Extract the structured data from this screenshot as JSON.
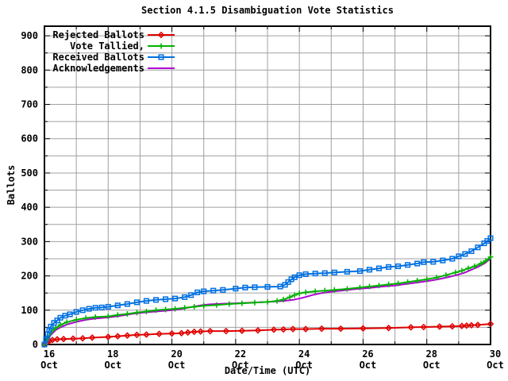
{
  "chart_data": {
    "type": "line",
    "title": "Section 4.1.5 Disambiguation Vote Statistics",
    "xlabel": "Date/Time (UTC)",
    "ylabel": "Ballots",
    "x_axis": {
      "month_label": "Oct",
      "min_day": 16,
      "max_day": 30,
      "major_tick_days": [
        16,
        18,
        20,
        22,
        24,
        26,
        28,
        30
      ],
      "minor_tick_interval_days": 1
    },
    "y_axis": {
      "min": 0,
      "max": 900,
      "major_tick_interval": 100,
      "minor_tick_interval": 50,
      "tick_labels": [
        "0",
        "100",
        "200",
        "300",
        "400",
        "500",
        "600",
        "700",
        "800",
        "900"
      ]
    },
    "grid": {
      "vertical_interval_days": 1,
      "horizontal_interval": 50,
      "color": "#a0a0a0"
    },
    "border_color": "#000000",
    "legend": {
      "position": "top-left"
    },
    "series": [
      {
        "name": "Rejected Ballots",
        "color": "#e10000",
        "marker": "diamond",
        "points": [
          [
            16.0,
            0
          ],
          [
            16.08,
            6
          ],
          [
            16.15,
            10
          ],
          [
            16.25,
            13
          ],
          [
            16.4,
            15
          ],
          [
            16.6,
            16
          ],
          [
            16.9,
            17
          ],
          [
            17.2,
            18
          ],
          [
            17.5,
            20
          ],
          [
            18.0,
            22
          ],
          [
            18.3,
            24
          ],
          [
            18.6,
            26
          ],
          [
            18.9,
            28
          ],
          [
            19.2,
            29
          ],
          [
            19.6,
            31
          ],
          [
            20.0,
            32
          ],
          [
            20.3,
            33
          ],
          [
            20.5,
            35
          ],
          [
            20.7,
            37
          ],
          [
            20.9,
            38
          ],
          [
            21.2,
            39
          ],
          [
            21.7,
            39
          ],
          [
            22.2,
            40
          ],
          [
            22.7,
            41
          ],
          [
            23.2,
            43
          ],
          [
            23.5,
            44
          ],
          [
            23.8,
            45
          ],
          [
            24.2,
            45
          ],
          [
            24.7,
            46
          ],
          [
            25.3,
            46
          ],
          [
            26.0,
            47
          ],
          [
            26.8,
            48
          ],
          [
            27.5,
            50
          ],
          [
            27.9,
            51
          ],
          [
            28.4,
            52
          ],
          [
            28.8,
            53
          ],
          [
            29.1,
            54
          ],
          [
            29.25,
            55
          ],
          [
            29.4,
            56
          ],
          [
            29.6,
            57
          ],
          [
            30.0,
            60
          ]
        ]
      },
      {
        "name": "Vote Tallied,",
        "color": "#00b200",
        "marker": "plus",
        "points": [
          [
            16.0,
            0
          ],
          [
            16.1,
            18
          ],
          [
            16.2,
            35
          ],
          [
            16.35,
            48
          ],
          [
            16.5,
            57
          ],
          [
            16.7,
            65
          ],
          [
            17.0,
            72
          ],
          [
            17.3,
            77
          ],
          [
            17.6,
            80
          ],
          [
            18.0,
            82
          ],
          [
            18.3,
            86
          ],
          [
            18.6,
            89
          ],
          [
            18.9,
            93
          ],
          [
            19.2,
            96
          ],
          [
            19.5,
            100
          ],
          [
            19.8,
            102
          ],
          [
            20.1,
            104
          ],
          [
            20.4,
            107
          ],
          [
            20.7,
            110
          ],
          [
            21.0,
            113
          ],
          [
            21.4,
            115
          ],
          [
            21.8,
            118
          ],
          [
            22.2,
            120
          ],
          [
            22.6,
            122
          ],
          [
            23.0,
            124
          ],
          [
            23.3,
            127
          ],
          [
            23.5,
            131
          ],
          [
            23.7,
            138
          ],
          [
            23.85,
            144
          ],
          [
            24.0,
            149
          ],
          [
            24.2,
            152
          ],
          [
            24.5,
            155
          ],
          [
            24.8,
            157
          ],
          [
            25.1,
            159
          ],
          [
            25.5,
            162
          ],
          [
            25.9,
            166
          ],
          [
            26.2,
            169
          ],
          [
            26.5,
            172
          ],
          [
            26.8,
            175
          ],
          [
            27.1,
            178
          ],
          [
            27.4,
            182
          ],
          [
            27.7,
            186
          ],
          [
            28.0,
            190
          ],
          [
            28.3,
            195
          ],
          [
            28.6,
            202
          ],
          [
            28.9,
            210
          ],
          [
            29.1,
            215
          ],
          [
            29.3,
            222
          ],
          [
            29.5,
            228
          ],
          [
            29.7,
            236
          ],
          [
            29.85,
            244
          ],
          [
            30.0,
            255
          ]
        ]
      },
      {
        "name": "Received Ballots",
        "color": "#0070e1",
        "marker": "square",
        "points": [
          [
            16.0,
            0
          ],
          [
            16.05,
            15
          ],
          [
            16.1,
            30
          ],
          [
            16.15,
            42
          ],
          [
            16.2,
            52
          ],
          [
            16.3,
            63
          ],
          [
            16.4,
            70
          ],
          [
            16.5,
            78
          ],
          [
            16.65,
            84
          ],
          [
            16.8,
            88
          ],
          [
            17.0,
            95
          ],
          [
            17.2,
            100
          ],
          [
            17.4,
            104
          ],
          [
            17.6,
            107
          ],
          [
            17.8,
            108
          ],
          [
            18.0,
            110
          ],
          [
            18.3,
            114
          ],
          [
            18.6,
            118
          ],
          [
            18.9,
            123
          ],
          [
            19.2,
            127
          ],
          [
            19.5,
            130
          ],
          [
            19.8,
            132
          ],
          [
            20.1,
            134
          ],
          [
            20.4,
            138
          ],
          [
            20.6,
            144
          ],
          [
            20.8,
            152
          ],
          [
            21.0,
            155
          ],
          [
            21.3,
            157
          ],
          [
            21.6,
            159
          ],
          [
            22.0,
            163
          ],
          [
            22.3,
            166
          ],
          [
            22.6,
            167
          ],
          [
            23.0,
            168
          ],
          [
            23.4,
            169
          ],
          [
            23.55,
            174
          ],
          [
            23.65,
            182
          ],
          [
            23.75,
            190
          ],
          [
            23.85,
            196
          ],
          [
            24.0,
            202
          ],
          [
            24.2,
            205
          ],
          [
            24.5,
            207
          ],
          [
            24.8,
            208
          ],
          [
            25.1,
            210
          ],
          [
            25.5,
            212
          ],
          [
            25.9,
            214
          ],
          [
            26.2,
            218
          ],
          [
            26.5,
            222
          ],
          [
            26.8,
            226
          ],
          [
            27.1,
            228
          ],
          [
            27.4,
            232
          ],
          [
            27.7,
            236
          ],
          [
            27.9,
            240
          ],
          [
            28.2,
            241
          ],
          [
            28.5,
            245
          ],
          [
            28.8,
            250
          ],
          [
            29.0,
            257
          ],
          [
            29.2,
            264
          ],
          [
            29.4,
            272
          ],
          [
            29.6,
            283
          ],
          [
            29.8,
            295
          ],
          [
            29.9,
            302
          ],
          [
            30.0,
            310
          ]
        ]
      },
      {
        "name": "Acknowledgements",
        "color": "#b200d6",
        "marker": "none",
        "points": [
          [
            16.0,
            0
          ],
          [
            16.1,
            14
          ],
          [
            16.2,
            28
          ],
          [
            16.35,
            42
          ],
          [
            16.5,
            50
          ],
          [
            16.7,
            58
          ],
          [
            17.0,
            66
          ],
          [
            17.3,
            72
          ],
          [
            17.6,
            76
          ],
          [
            18.0,
            79
          ],
          [
            18.4,
            84
          ],
          [
            18.8,
            90
          ],
          [
            19.2,
            94
          ],
          [
            19.6,
            97
          ],
          [
            20.0,
            100
          ],
          [
            20.3,
            104
          ],
          [
            20.6,
            109
          ],
          [
            20.9,
            114
          ],
          [
            21.2,
            117
          ],
          [
            21.6,
            119
          ],
          [
            22.0,
            120
          ],
          [
            22.5,
            122
          ],
          [
            23.0,
            124
          ],
          [
            23.5,
            127
          ],
          [
            23.8,
            130
          ],
          [
            24.1,
            136
          ],
          [
            24.4,
            144
          ],
          [
            24.7,
            150
          ],
          [
            25.0,
            154
          ],
          [
            25.4,
            158
          ],
          [
            25.8,
            162
          ],
          [
            26.2,
            165
          ],
          [
            26.6,
            169
          ],
          [
            27.0,
            172
          ],
          [
            27.4,
            177
          ],
          [
            27.8,
            182
          ],
          [
            28.1,
            186
          ],
          [
            28.4,
            191
          ],
          [
            28.7,
            197
          ],
          [
            29.0,
            204
          ],
          [
            29.2,
            210
          ],
          [
            29.4,
            218
          ],
          [
            29.6,
            226
          ],
          [
            29.8,
            236
          ],
          [
            30.0,
            250
          ]
        ]
      }
    ]
  }
}
